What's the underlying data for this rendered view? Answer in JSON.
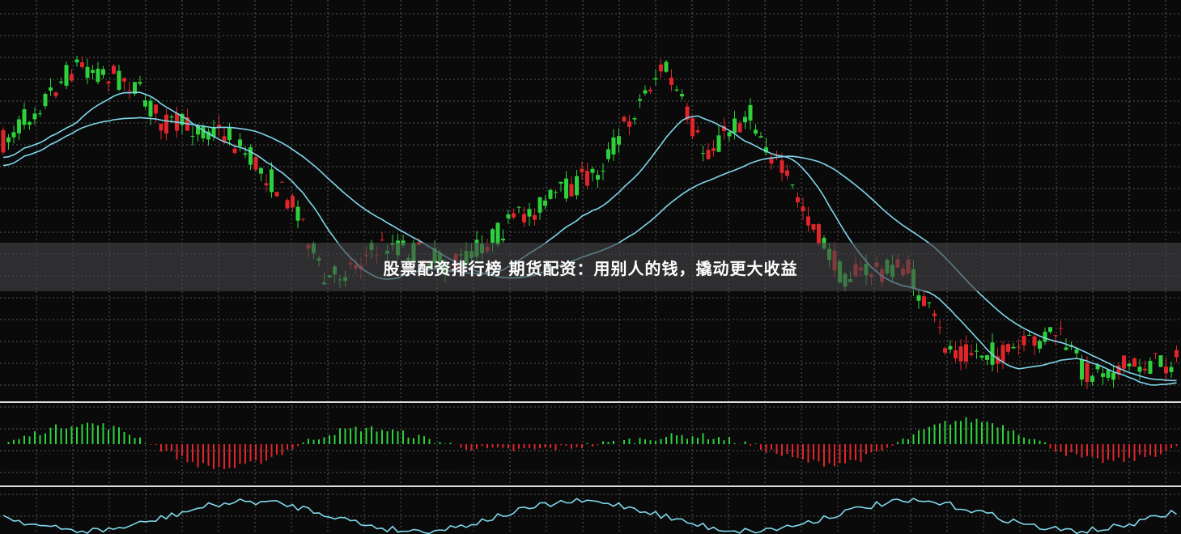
{
  "banner": {
    "text": "股票配资排行榜 期货配资：用别人的钱，撬动更大收益"
  }
}
